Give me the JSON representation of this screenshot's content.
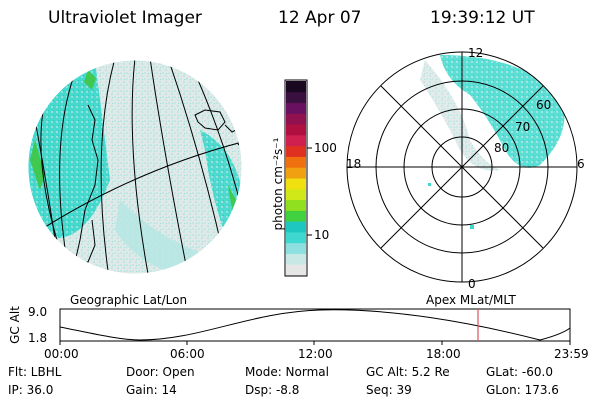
{
  "header": {
    "title": "Ultraviolet Imager",
    "date": "12 Apr 07",
    "time": "19:39:12 UT"
  },
  "colorbar": {
    "unit_label": "photon cm⁻²s⁻¹",
    "ticks": [
      "100",
      "10"
    ],
    "colors": [
      "#e6e6e6",
      "#c8e8e6",
      "#8ee0e0",
      "#3ed8d0",
      "#1ec8c0",
      "#40d040",
      "#90e020",
      "#d0e818",
      "#f0e010",
      "#f0a010",
      "#f07010",
      "#e03020",
      "#d02050",
      "#b01040",
      "#901050",
      "#6a1060",
      "#3a1040",
      "#1a0820"
    ]
  },
  "left_map": {
    "caption": "Geographic Lat/Lon"
  },
  "right_map": {
    "caption": "Apex MLat/MLT",
    "mlt_labels": {
      "top": "12",
      "left": "18",
      "right": "6",
      "bottom": "0"
    },
    "lat_labels": [
      "60",
      "70",
      "80"
    ]
  },
  "altitude_plot": {
    "ylabel": "GC Alt",
    "yticks": [
      "9.0",
      "1.8"
    ],
    "xticks": [
      "00:00",
      "06:00",
      "12:00",
      "18:00",
      "23:59"
    ],
    "marker_color": "#e05060"
  },
  "status": {
    "flt": "Flt: LBHL",
    "ip": "IP: 36.0",
    "door": "Door: Open",
    "gain": "Gain: 14",
    "mode": "Mode: Normal",
    "dsp": "Dsp:   -8.8",
    "gcalt": "GC Alt: 5.2 Re",
    "seq": "Seq: 39",
    "glat": "GLat: -60.0",
    "glon": "GLon: 173.6"
  }
}
